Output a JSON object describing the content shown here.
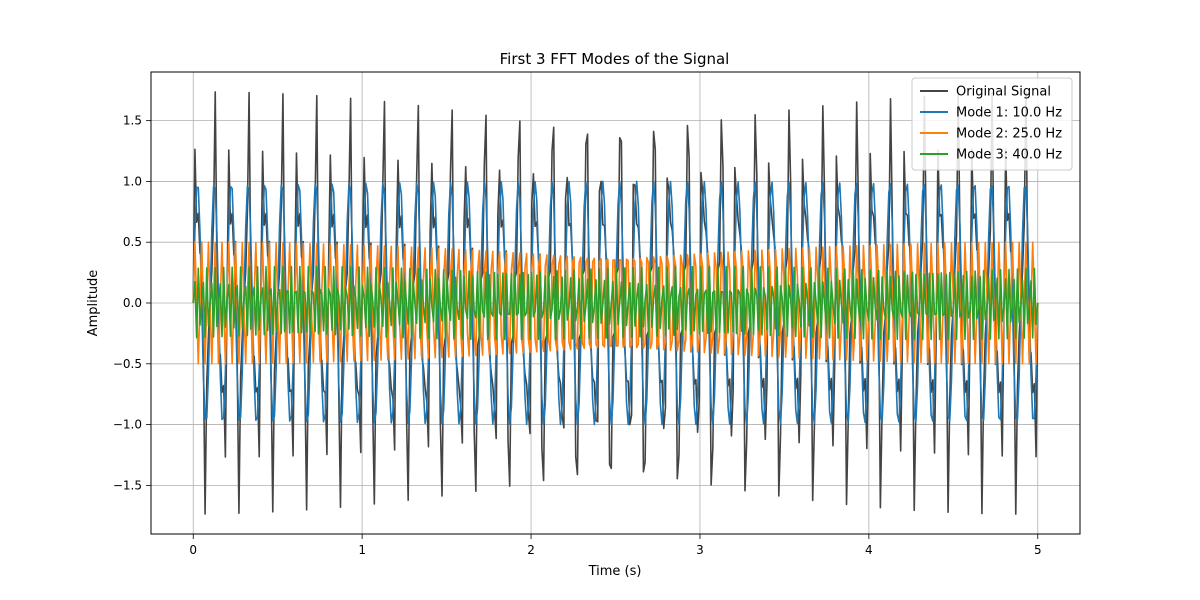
{
  "chart_data": {
    "type": "line",
    "title": "First 3 FFT Modes of the Signal",
    "xlabel": "Time (s)",
    "ylabel": "Amplitude",
    "xlim": [
      -0.25,
      5.25
    ],
    "ylim": [
      -1.9,
      1.9
    ],
    "xticks": [
      0,
      1,
      2,
      3,
      4,
      5
    ],
    "xtick_labels": [
      "0",
      "1",
      "2",
      "3",
      "4",
      "5"
    ],
    "yticks": [
      -1.5,
      -1.0,
      -0.5,
      0.0,
      0.5,
      1.0,
      1.5
    ],
    "ytick_labels": [
      "−1.5",
      "−1.0",
      "−0.5",
      "0.0",
      "0.5",
      "1.0",
      "1.5"
    ],
    "grid": true,
    "legend_position": "top-right",
    "sample_rate_hz": 100,
    "duration_s": 5,
    "series": [
      {
        "name": "Original Signal",
        "color": "#444444",
        "components": [
          {
            "amplitude": 1.0,
            "frequency_hz": 10
          },
          {
            "amplitude": 0.5,
            "frequency_hz": 25
          },
          {
            "amplitude": 0.3,
            "frequency_hz": 40
          }
        ]
      },
      {
        "name": "Mode 1: 10.0 Hz",
        "color": "#1f77b4",
        "components": [
          {
            "amplitude": 1.0,
            "frequency_hz": 10
          }
        ]
      },
      {
        "name": "Mode 2: 25.0 Hz",
        "color": "#ff7f0e",
        "components": [
          {
            "amplitude": 0.5,
            "frequency_hz": 25
          }
        ]
      },
      {
        "name": "Mode 3: 40.0 Hz",
        "color": "#2ca02c",
        "components": [
          {
            "amplitude": 0.3,
            "frequency_hz": 40
          }
        ]
      }
    ]
  }
}
